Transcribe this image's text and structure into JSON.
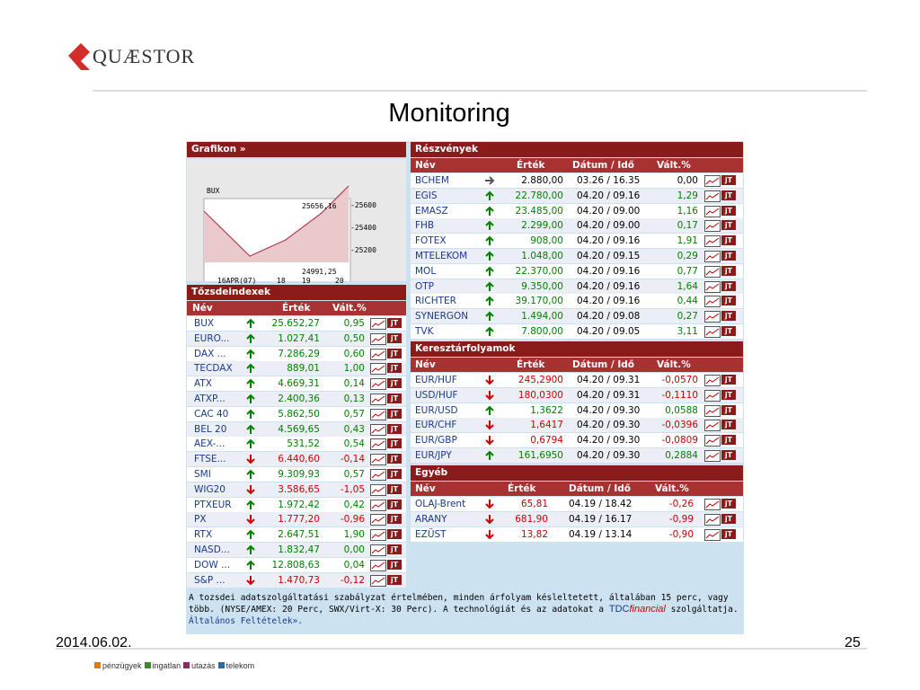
{
  "header": {
    "logo": "QUÆSTOR",
    "title": "Monitoring"
  },
  "grafikon": {
    "title": "Grafikon »",
    "label": "BUX",
    "high": "25656,16",
    "low": "24991,25",
    "yticks": [
      "-25600",
      "-25400",
      "-25200"
    ],
    "xticks": [
      "16APR(07)",
      "18",
      "19",
      "20"
    ]
  },
  "icon_label": "jT",
  "indices": {
    "title": "Tőzsdeindexek",
    "columns": [
      "Név",
      "Érték",
      "Vált.%"
    ],
    "rows": [
      [
        "BUX",
        "25.652,27",
        "0,95",
        "up"
      ],
      [
        "EURO...",
        "1.027,41",
        "0,50",
        "up"
      ],
      [
        "DAX ...",
        "7.286,29",
        "0,60",
        "up"
      ],
      [
        "TECDAX",
        "889,01",
        "1,00",
        "up"
      ],
      [
        "ATX",
        "4.669,31",
        "0,14",
        "up"
      ],
      [
        "ATXP...",
        "2.400,36",
        "0,13",
        "up"
      ],
      [
        "CAC 40",
        "5.862,50",
        "0,57",
        "up"
      ],
      [
        "BEL 20",
        "4.569,65",
        "0,43",
        "up"
      ],
      [
        "AEX-...",
        "531,52",
        "0,54",
        "up"
      ],
      [
        "FTSE...",
        "6.440,60",
        "-0,14",
        "down"
      ],
      [
        "SMI",
        "9.309,93",
        "0,57",
        "up"
      ],
      [
        "WIG20",
        "3.586,65",
        "-1,05",
        "down"
      ],
      [
        "PTXEUR",
        "1.972,42",
        "0,42",
        "up"
      ],
      [
        "PX",
        "1.777,20",
        "-0,96",
        "down"
      ],
      [
        "RTX",
        "2.647,51",
        "1,90",
        "up"
      ],
      [
        "NASD...",
        "1.832,47",
        "0,00",
        "up"
      ],
      [
        "DOW ...",
        "12.808,63",
        "0,04",
        "up"
      ],
      [
        "S&P ...",
        "1.470,73",
        "-0,12",
        "down"
      ]
    ]
  },
  "stocks": {
    "title": "Részvények",
    "columns": [
      "Név",
      "Érték",
      "Dátum / Idő",
      "Vált.%"
    ],
    "rows": [
      [
        "BCHEM",
        "2.880,00",
        "03.26 / 16.35",
        "0,00",
        "flat"
      ],
      [
        "EGIS",
        "22.780,00",
        "04.20 / 09.16",
        "1,29",
        "up"
      ],
      [
        "EMASZ",
        "23.485,00",
        "04.20 / 09.00",
        "1,16",
        "up"
      ],
      [
        "FHB",
        "2.299,00",
        "04.20 / 09.00",
        "0,17",
        "up"
      ],
      [
        "FOTEX",
        "908,00",
        "04.20 / 09.16",
        "1,91",
        "up"
      ],
      [
        "MTELEKOM",
        "1.048,00",
        "04.20 / 09.15",
        "0,29",
        "up"
      ],
      [
        "MOL",
        "22.370,00",
        "04.20 / 09.16",
        "0,77",
        "up"
      ],
      [
        "OTP",
        "9.350,00",
        "04.20 / 09.16",
        "1,64",
        "up"
      ],
      [
        "RICHTER",
        "39.170,00",
        "04.20 / 09.16",
        "0,44",
        "up"
      ],
      [
        "SYNERGON",
        "1.494,00",
        "04.20 / 09.08",
        "0,27",
        "up"
      ],
      [
        "TVK",
        "7.800,00",
        "04.20 / 09.05",
        "3,11",
        "up"
      ]
    ]
  },
  "fx": {
    "title": "Keresztárfolyamok",
    "columns": [
      "Név",
      "Érték",
      "Dátum / Idő",
      "Vált.%"
    ],
    "rows": [
      [
        "EUR/HUF",
        "245,2900",
        "04.20 / 09.31",
        "-0,0570",
        "down"
      ],
      [
        "USD/HUF",
        "180,0300",
        "04.20 / 09.31",
        "-0,1110",
        "down"
      ],
      [
        "EUR/USD",
        "1,3622",
        "04.20 / 09.30",
        "0,0588",
        "up"
      ],
      [
        "EUR/CHF",
        "1,6417",
        "04.20 / 09.30",
        "-0,0396",
        "down"
      ],
      [
        "EUR/GBP",
        "0,6794",
        "04.20 / 09.30",
        "-0,0809",
        "down"
      ],
      [
        "EUR/JPY",
        "161,6950",
        "04.20 / 09.30",
        "0,2884",
        "up"
      ]
    ]
  },
  "other": {
    "title": "Egyéb",
    "columns": [
      "Név",
      "Érték",
      "Dátum / Idő",
      "Vált.%"
    ],
    "rows": [
      [
        "OLAJ-Brent",
        "65,81",
        "04.19 / 18.42",
        "-0,26",
        "down"
      ],
      [
        "ARANY",
        "681,90",
        "04.19 / 16.17",
        "-0,99",
        "down"
      ],
      [
        "EZÜST",
        "13,82",
        "04.19 / 13.14",
        "-0,90",
        "down"
      ]
    ]
  },
  "note": {
    "text": "A tozsdei adatszolgáltatási szabályzat értelmében, minden árfolyam késleltetett, általában 15 perc, vagy több. (NYSE/AMEX: 20 Perc, SWX/Virt-X: 30 Perc). A technológiát és az adatokat a",
    "brand1": "TDC",
    "brand2": "financial",
    "text2": "szolgáltatja.",
    "link": "Általános Feltételek»."
  },
  "footer": {
    "date": "2014.06.02.",
    "page": "25",
    "links": [
      "pénzügyek",
      "ingatlan",
      "utazás",
      "telekom"
    ]
  }
}
